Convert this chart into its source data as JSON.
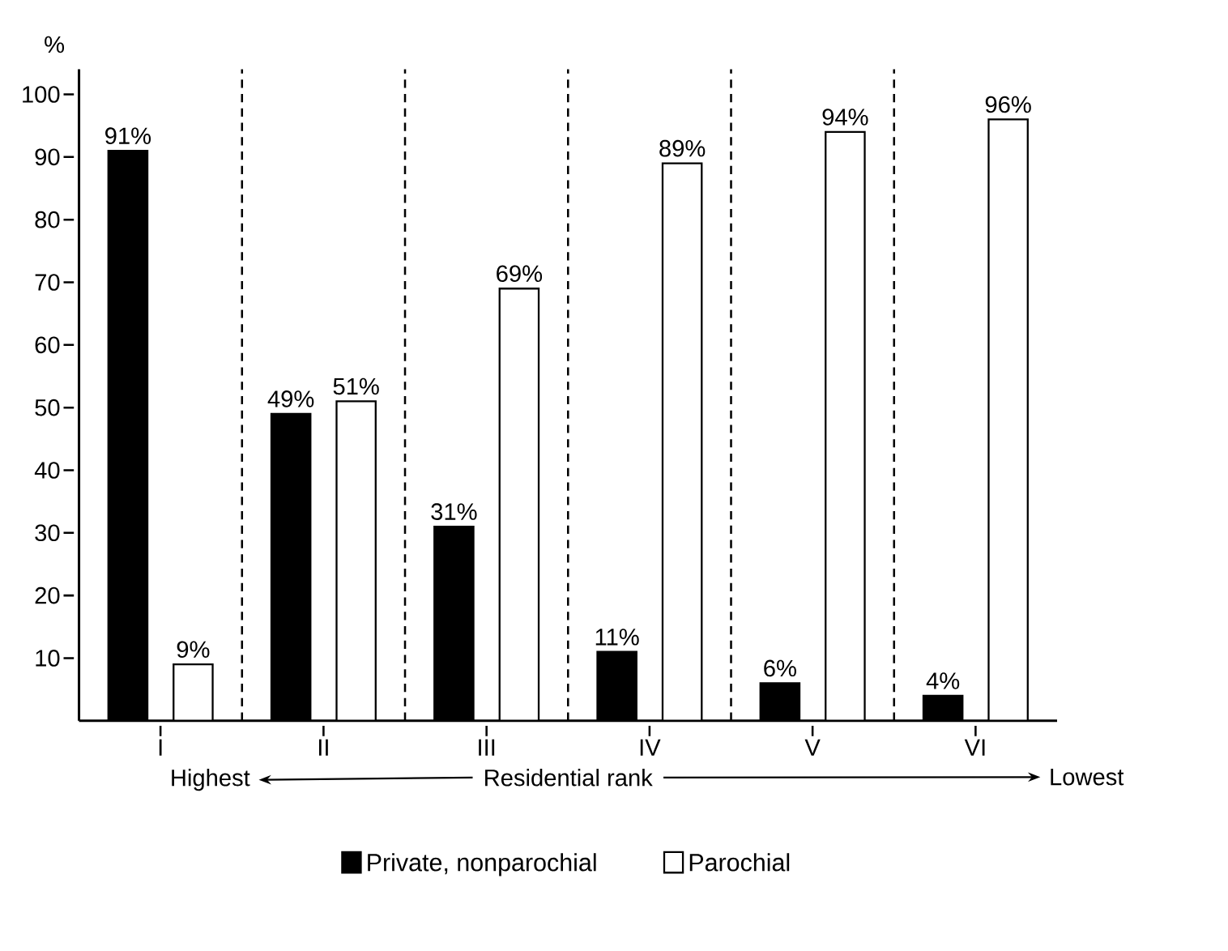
{
  "chart_data": {
    "type": "bar",
    "categories": [
      "I",
      "II",
      "III",
      "IV",
      "V",
      "VI"
    ],
    "series": [
      {
        "name": "Private, nonparochial",
        "color": "#000000",
        "values": [
          91,
          49,
          31,
          11,
          6,
          4
        ],
        "value_labels": [
          "91%",
          "49%",
          "31%",
          "11%",
          "6%",
          "4%"
        ]
      },
      {
        "name": "Parochial",
        "color": "#000000",
        "values": [
          9,
          51,
          69,
          89,
          94,
          96
        ],
        "value_labels": [
          "9%",
          "51%",
          "69%",
          "89%",
          "94%",
          "96%"
        ]
      }
    ],
    "ylabel": "%",
    "xlabel": "Residential rank",
    "annotations": [
      "Highest",
      "Lowest"
    ],
    "ylim": [
      0,
      104
    ],
    "yticks": [
      10,
      20,
      30,
      40,
      50,
      60,
      70,
      80,
      90,
      100
    ],
    "grid": false,
    "legend": "bottom"
  }
}
